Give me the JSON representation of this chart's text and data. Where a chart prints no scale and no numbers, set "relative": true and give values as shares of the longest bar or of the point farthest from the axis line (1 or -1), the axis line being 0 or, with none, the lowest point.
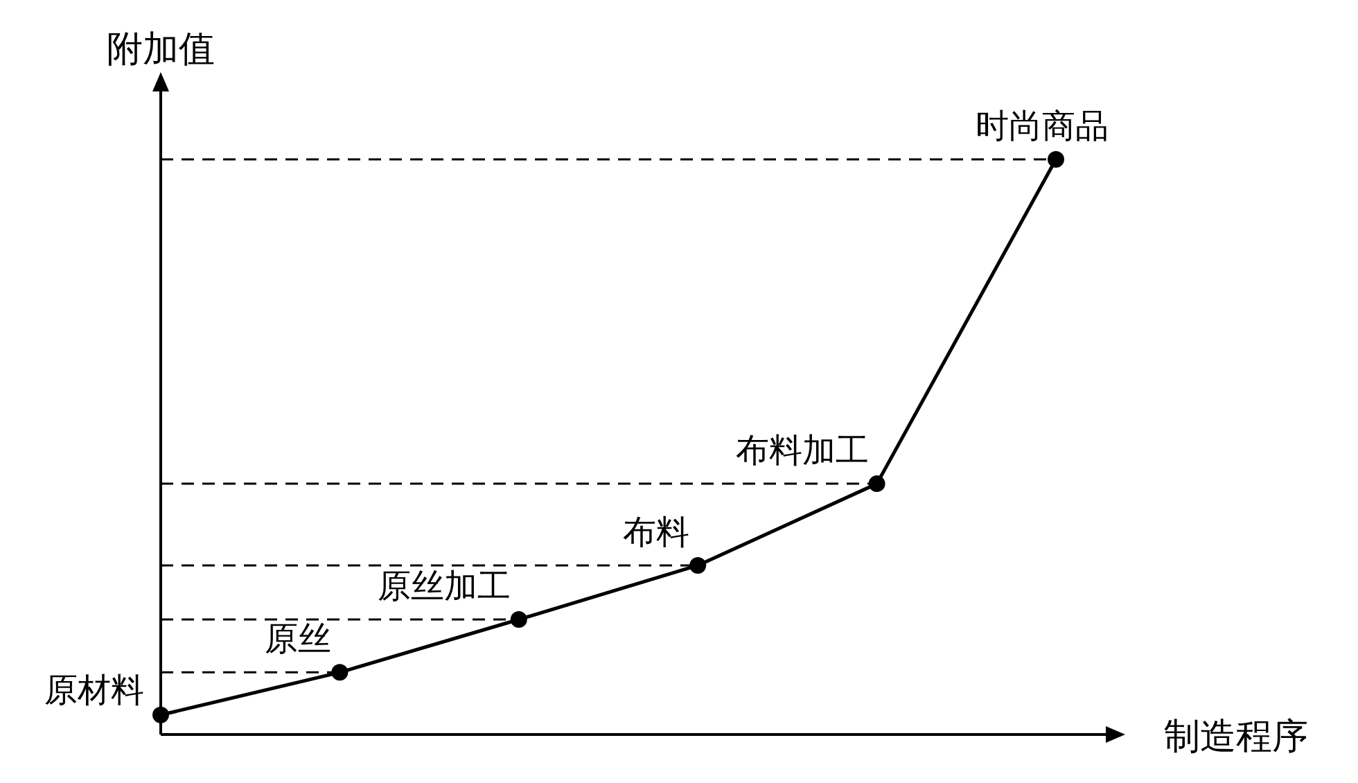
{
  "chart_data": {
    "type": "line",
    "relative": true,
    "xlabel": "制造程序",
    "ylabel": "附加值",
    "categories": [
      "原材料",
      "原丝",
      "原丝加工",
      "布料",
      "布料加工",
      "时尚商品"
    ],
    "series": [
      {
        "color": "#000000",
        "values": [
          0.034,
          0.108,
          0.2,
          0.294,
          0.436,
          1
        ]
      }
    ],
    "marker": "circle",
    "line_style": "solid",
    "ref_lines": [
      {
        "axis": "y",
        "value": 0.108,
        "color": "#000000",
        "line_style": "dashed"
      },
      {
        "axis": "y",
        "value": 0.2,
        "color": "#000000",
        "line_style": "dashed"
      },
      {
        "axis": "y",
        "value": 0.294,
        "color": "#000000",
        "line_style": "dashed"
      },
      {
        "axis": "y",
        "value": 0.436,
        "color": "#000000",
        "line_style": "dashed"
      },
      {
        "axis": "y",
        "value": 1,
        "color": "#000000",
        "line_style": "dashed"
      }
    ]
  }
}
